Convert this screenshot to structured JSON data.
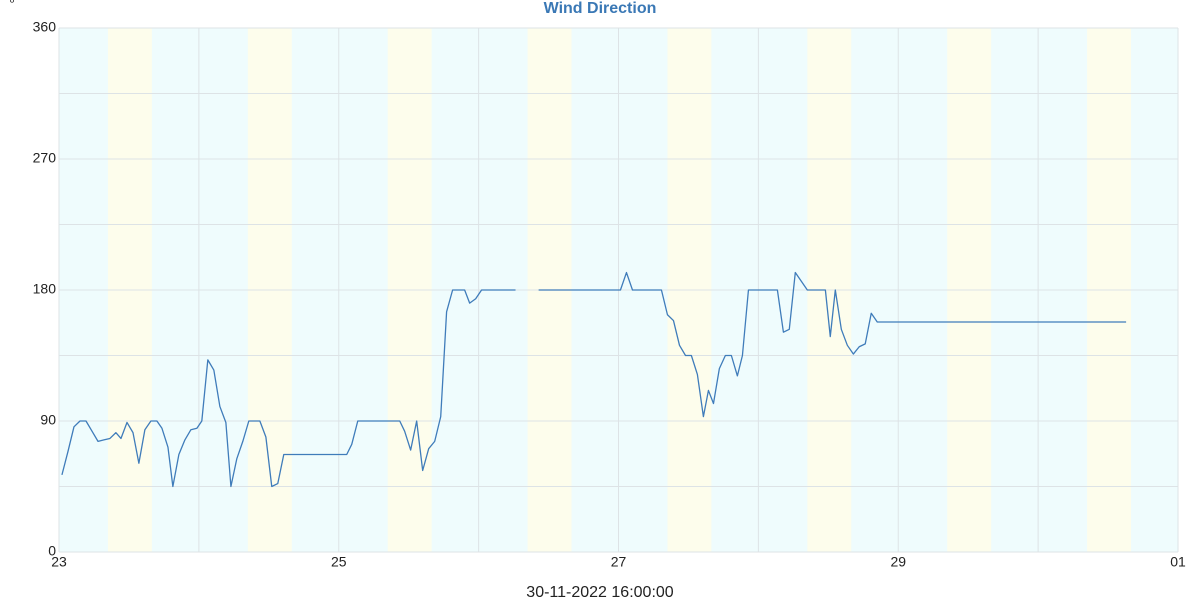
{
  "chart_data": {
    "type": "line",
    "title": "Wind Direction",
    "y_unit": "°",
    "x_label": "30-11-2022 16:00:00",
    "x": [
      23.021,
      23.064,
      23.107,
      23.15,
      23.193,
      23.236,
      23.279,
      23.321,
      23.364,
      23.407,
      23.443,
      23.486,
      23.529,
      23.571,
      23.614,
      23.657,
      23.7,
      23.736,
      23.779,
      23.814,
      23.857,
      23.9,
      23.943,
      23.986,
      24.021,
      24.064,
      24.107,
      24.15,
      24.193,
      24.229,
      24.271,
      24.314,
      24.357,
      24.4,
      24.436,
      24.479,
      24.521,
      24.564,
      24.607,
      25.057,
      25.093,
      25.136,
      25.436,
      25.471,
      25.514,
      25.557,
      25.6,
      25.643,
      25.686,
      25.729,
      25.771,
      25.814,
      25.9,
      25.936,
      25.979,
      26.021,
      26.264,
      26.35,
      26.429,
      27.014,
      27.057,
      27.1,
      27.307,
      27.35,
      27.393,
      27.436,
      27.479,
      27.521,
      27.564,
      27.607,
      27.643,
      27.679,
      27.721,
      27.764,
      27.807,
      27.85,
      27.886,
      27.929,
      28.136,
      28.179,
      28.221,
      28.264,
      28.307,
      28.35,
      28.479,
      28.514,
      28.55,
      28.593,
      28.636,
      28.679,
      28.721,
      28.764,
      28.807,
      28.85,
      30.629
    ],
    "values": [
      53,
      69,
      86,
      90,
      90,
      83,
      76,
      77,
      78,
      82,
      78,
      89,
      82,
      61,
      84,
      90,
      90,
      85,
      72,
      45,
      67,
      77,
      84,
      85,
      90,
      132,
      125,
      100,
      89,
      45,
      64,
      76,
      90,
      90,
      90,
      79,
      45,
      47,
      67,
      67,
      74,
      90,
      90,
      83,
      70,
      90,
      56,
      71,
      76,
      93,
      165,
      180,
      180,
      171,
      174,
      180,
      180,
      null,
      180,
      180,
      192,
      180,
      180,
      163,
      159,
      142,
      135,
      135,
      122,
      93,
      111,
      102,
      126,
      135,
      135,
      121,
      135,
      180,
      180,
      151,
      153,
      192,
      186,
      180,
      180,
      148,
      180,
      153,
      142,
      136,
      141,
      143,
      164,
      158,
      158
    ],
    "color": "#3f7cba",
    "xlim": [
      23,
      31
    ],
    "xticks": [
      23,
      25,
      27,
      29,
      {
        "value": 31,
        "label": "01"
      }
    ],
    "minor_xticks": [
      24,
      26,
      28,
      30
    ],
    "ylim": [
      0,
      360
    ],
    "yticks": [
      0,
      90,
      180,
      270,
      360
    ],
    "minor_yticks": [
      45,
      135,
      225,
      315
    ],
    "grid": true,
    "background_color": "#effcfd",
    "band_color": "#fdfdec",
    "day_bands": [
      [
        23.35,
        23.664
      ],
      [
        24.35,
        24.664
      ],
      [
        25.35,
        25.664
      ],
      [
        26.35,
        26.664
      ],
      [
        27.35,
        27.664
      ],
      [
        28.35,
        28.664
      ],
      [
        29.35,
        29.664
      ],
      [
        30.35,
        30.664
      ]
    ]
  }
}
